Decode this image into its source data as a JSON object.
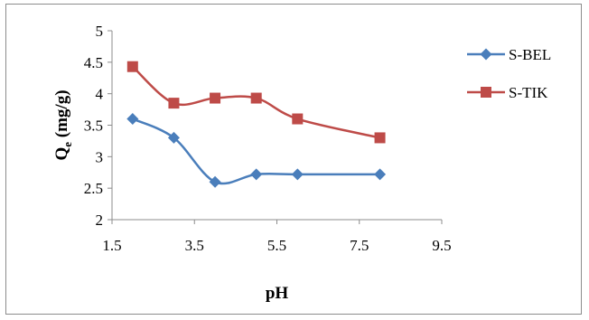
{
  "chart_data": {
    "type": "line",
    "title": "",
    "xlabel": "pH",
    "ylabel": "Qe (mg/g)",
    "ylabel_main": "Q",
    "ylabel_sub": "e",
    "ylabel_rest": " (mg/g)",
    "xlim": [
      1.5,
      9.5
    ],
    "ylim": [
      2,
      5
    ],
    "xticks": [
      1.5,
      3.5,
      5.5,
      7.5,
      9.5
    ],
    "yticks": [
      2,
      2.5,
      3,
      3.5,
      4,
      4.5,
      5
    ],
    "xtick_labels": [
      "1.5",
      "3.5",
      "5.5",
      "7.5",
      "9.5"
    ],
    "ytick_labels": [
      "2",
      "2.5",
      "3",
      "3.5",
      "4",
      "4.5",
      "5"
    ],
    "grid": false,
    "legend_position": "right",
    "series": [
      {
        "name": "S-BEL",
        "color": "#4a7ebb",
        "marker": "diamond",
        "x": [
          2,
          3,
          4,
          5,
          6,
          8
        ],
        "y": [
          3.6,
          3.3,
          2.6,
          2.72,
          2.72,
          2.72
        ]
      },
      {
        "name": "S-TIK",
        "color": "#be4b48",
        "marker": "square",
        "x": [
          2,
          3,
          4,
          5,
          6,
          8
        ],
        "y": [
          4.43,
          3.85,
          3.93,
          3.93,
          3.6,
          3.3
        ]
      }
    ]
  }
}
